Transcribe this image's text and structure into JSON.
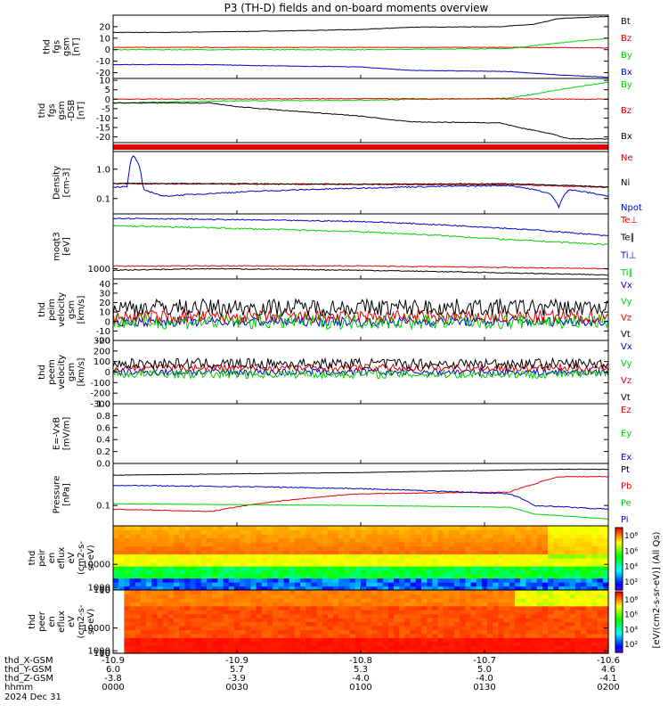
{
  "title": "P3 (TH-D) fields and on-board moments overview",
  "colors": {
    "black": "#000000",
    "red": "#e00000",
    "green": "#00d000",
    "blue": "#0000d0"
  },
  "chart_data": [
    {
      "type": "line",
      "ylabel": [
        "thd",
        "fgs",
        "gsm",
        "[nT]"
      ],
      "yticks": [
        {
          "v": 20,
          "t": "20"
        },
        {
          "v": 10,
          "t": "10"
        },
        {
          "v": 0,
          "t": "0"
        },
        {
          "v": -10,
          "t": "-10"
        },
        {
          "v": -20,
          "t": "-20"
        }
      ],
      "ylim": [
        -25,
        30
      ],
      "series": [
        {
          "name": "Bt",
          "color": "black",
          "noise": 0.2,
          "points": [
            [
              0,
              15
            ],
            [
              0.1,
              15
            ],
            [
              0.3,
              16
            ],
            [
              0.5,
              17.5
            ],
            [
              0.6,
              19.5
            ],
            [
              0.78,
              20
            ],
            [
              0.85,
              22
            ],
            [
              0.9,
              27
            ],
            [
              0.95,
              28
            ],
            [
              1,
              29
            ]
          ]
        },
        {
          "name": "Bz",
          "color": "red",
          "noise": 0.2,
          "points": [
            [
              0,
              2
            ],
            [
              0.5,
              2
            ],
            [
              0.8,
              2
            ],
            [
              1,
              1.5
            ]
          ]
        },
        {
          "name": "By",
          "color": "green",
          "noise": 0.3,
          "points": [
            [
              0,
              0
            ],
            [
              0.2,
              0
            ],
            [
              0.5,
              0
            ],
            [
              0.8,
              1
            ],
            [
              0.88,
              5
            ],
            [
              1,
              10
            ]
          ]
        },
        {
          "name": "Bx",
          "color": "blue",
          "noise": 0.2,
          "points": [
            [
              0,
              -13
            ],
            [
              0.2,
              -13
            ],
            [
              0.3,
              -14
            ],
            [
              0.5,
              -15
            ],
            [
              0.6,
              -18
            ],
            [
              0.8,
              -19
            ],
            [
              0.9,
              -22
            ],
            [
              1,
              -24
            ]
          ]
        }
      ]
    },
    {
      "type": "line",
      "ylabel": [
        "thd",
        "fgs",
        "gsm",
        "-DSB",
        "[nT]"
      ],
      "yticks": [
        {
          "v": 10,
          "t": "10"
        },
        {
          "v": 5,
          "t": "5"
        },
        {
          "v": 0,
          "t": "0"
        },
        {
          "v": -5,
          "t": "-5"
        },
        {
          "v": -10,
          "t": "-10"
        },
        {
          "v": -15,
          "t": "-15"
        },
        {
          "v": -20,
          "t": "-20"
        }
      ],
      "ylim": [
        -23,
        11
      ],
      "series": [
        {
          "name": "By",
          "color": "green",
          "noise": 0.2,
          "points": [
            [
              0,
              -2
            ],
            [
              0.2,
              -1
            ],
            [
              0.5,
              -0.5
            ],
            [
              0.8,
              0.5
            ],
            [
              0.9,
              5
            ],
            [
              1,
              9
            ]
          ]
        },
        {
          "name": "Bz",
          "color": "red",
          "noise": 0.2,
          "points": [
            [
              0,
              0
            ],
            [
              0.5,
              0.3
            ],
            [
              1,
              0
            ]
          ]
        },
        {
          "name": "Bx",
          "color": "black",
          "noise": 0.2,
          "points": [
            [
              0,
              -2
            ],
            [
              0.2,
              -2
            ],
            [
              0.25,
              -4
            ],
            [
              0.5,
              -9
            ],
            [
              0.6,
              -12
            ],
            [
              0.78,
              -12.5
            ],
            [
              0.82,
              -15
            ],
            [
              0.88,
              -18
            ],
            [
              0.92,
              -21
            ],
            [
              1,
              -21
            ]
          ]
        }
      ]
    },
    {
      "type": "bar",
      "kind": "status",
      "color": "red",
      "values": [
        1
      ]
    },
    {
      "type": "line",
      "log": true,
      "ylabel": [
        "Density",
        "[cm-3]"
      ],
      "yticks": [
        {
          "v": 1,
          "t": "1.0"
        },
        {
          "v": 0.1,
          "t": "0.1"
        }
      ],
      "ylim": [
        0.03,
        4
      ],
      "series": [
        {
          "name": "Ne",
          "color": "red",
          "noise": 0.04,
          "points": [
            [
              0,
              0.32
            ],
            [
              0.5,
              0.3
            ],
            [
              0.8,
              0.3
            ],
            [
              1,
              0.24
            ]
          ]
        },
        {
          "name": "Ni",
          "color": "black",
          "noise": 0.03,
          "points": [
            [
              0,
              0.33
            ],
            [
              0.5,
              0.31
            ],
            [
              0.8,
              0.32
            ],
            [
              1,
              0.25
            ]
          ]
        },
        {
          "name": "Npot",
          "color": "blue",
          "noise": 0.05,
          "points": [
            [
              0,
              0.25
            ],
            [
              0.03,
              0.25
            ],
            [
              0.04,
              3
            ],
            [
              0.06,
              0.2
            ],
            [
              0.1,
              0.12
            ],
            [
              0.3,
              0.18
            ],
            [
              0.6,
              0.25
            ],
            [
              0.8,
              0.28
            ],
            [
              0.88,
              0.15
            ],
            [
              0.9,
              0.05
            ],
            [
              0.92,
              0.2
            ],
            [
              1,
              0.12
            ]
          ]
        }
      ]
    },
    {
      "type": "line",
      "log": true,
      "ylabel": [
        "moqt3",
        "[eV]"
      ],
      "yticks": [
        {
          "v": 1000,
          "t": "1000"
        }
      ],
      "ylim": [
        500,
        40000
      ],
      "series": [
        {
          "name": "Te⊥",
          "color": "red",
          "noise": 0.03,
          "points": [
            [
              0,
              1200
            ],
            [
              0.5,
              1200
            ],
            [
              1,
              1000
            ]
          ]
        },
        {
          "name": "Te∥",
          "color": "black",
          "noise": 0.03,
          "points": [
            [
              0,
              900
            ],
            [
              0.2,
              1000
            ],
            [
              0.5,
              900
            ],
            [
              1,
              650
            ]
          ]
        },
        {
          "name": "Ti⊥",
          "color": "blue",
          "noise": 0.04,
          "points": [
            [
              0,
              30000
            ],
            [
              0.5,
              24000
            ],
            [
              0.8,
              15000
            ],
            [
              1,
              9000
            ]
          ]
        },
        {
          "name": "Ti∥",
          "color": "green",
          "noise": 0.05,
          "points": [
            [
              0,
              18000
            ],
            [
              0.5,
              12000
            ],
            [
              0.8,
              7000
            ],
            [
              1,
              5000
            ]
          ]
        }
      ]
    },
    {
      "type": "line",
      "ylabel": [
        "thd",
        "peim",
        "velocity",
        "gsm",
        "[km/s]"
      ],
      "yticks": [
        {
          "v": 40,
          "t": "40"
        },
        {
          "v": 30,
          "t": "30"
        },
        {
          "v": 20,
          "t": "20"
        },
        {
          "v": 10,
          "t": "10"
        },
        {
          "v": 0,
          "t": "0"
        },
        {
          "v": -10,
          "t": "-10"
        },
        {
          "v": -20,
          "t": "-20"
        }
      ],
      "ylim": [
        -20,
        45
      ],
      "series": [
        {
          "name": "Vx",
          "color": "blue",
          "noise": 5,
          "points": [
            [
              0,
              0
            ],
            [
              1,
              0
            ]
          ]
        },
        {
          "name": "Vy",
          "color": "green",
          "noise": 8,
          "points": [
            [
              0,
              0
            ],
            [
              1,
              0
            ]
          ]
        },
        {
          "name": "Vz",
          "color": "red",
          "noise": 7,
          "points": [
            [
              0,
              5
            ],
            [
              1,
              5
            ]
          ]
        },
        {
          "name": "Vt",
          "color": "black",
          "noise": 9,
          "points": [
            [
              0,
              15
            ],
            [
              1,
              15
            ]
          ]
        }
      ]
    },
    {
      "type": "line",
      "ylabel": [
        "thd",
        "peem",
        "velocity",
        "gsm",
        "[km/s]"
      ],
      "yticks": [
        {
          "v": 300,
          "t": "300"
        },
        {
          "v": 200,
          "t": "200"
        },
        {
          "v": 100,
          "t": "100"
        },
        {
          "v": 0,
          "t": "0"
        },
        {
          "v": -100,
          "t": "-100"
        },
        {
          "v": -200,
          "t": "-200"
        },
        {
          "v": -300,
          "t": "-300"
        }
      ],
      "ylim": [
        -300,
        300
      ],
      "series": [
        {
          "name": "Vx",
          "color": "blue",
          "noise": 35,
          "points": [
            [
              0,
              0
            ],
            [
              1,
              0
            ]
          ]
        },
        {
          "name": "Vy",
          "color": "green",
          "noise": 40,
          "points": [
            [
              0,
              -20
            ],
            [
              1,
              -20
            ]
          ]
        },
        {
          "name": "Vz",
          "color": "red",
          "noise": 35,
          "points": [
            [
              0,
              40
            ],
            [
              1,
              40
            ]
          ]
        },
        {
          "name": "Vt",
          "color": "black",
          "noise": 50,
          "points": [
            [
              0,
              80
            ],
            [
              1,
              80
            ]
          ]
        }
      ]
    },
    {
      "type": "line",
      "ylabel": [
        "E=-VxB",
        "[mV/m]"
      ],
      "yticks": [
        {
          "v": 1,
          "t": "1.0"
        },
        {
          "v": 0.8,
          "t": "0.8"
        },
        {
          "v": 0.6,
          "t": "0.6"
        },
        {
          "v": 0.4,
          "t": "0.4"
        },
        {
          "v": 0.2,
          "t": "0.2"
        },
        {
          "v": 0,
          "t": "0.0"
        }
      ],
      "ylim": [
        0,
        1
      ],
      "series": [
        {
          "name": "Ez",
          "color": "red",
          "noise": 0,
          "points": []
        },
        {
          "name": "Ey",
          "color": "green",
          "noise": 0,
          "points": []
        },
        {
          "name": "Ex",
          "color": "blue",
          "noise": 0,
          "points": []
        }
      ]
    },
    {
      "type": "line",
      "log": true,
      "ylabel": [
        "Pressure",
        "[nPa]"
      ],
      "yticks": [
        {
          "v": 0.1,
          "t": "0.1"
        }
      ],
      "ylim": [
        0.03,
        1.2
      ],
      "series": [
        {
          "name": "Pt",
          "color": "black",
          "noise": 0.01,
          "points": [
            [
              0,
              0.6
            ],
            [
              0.5,
              0.7
            ],
            [
              0.9,
              0.85
            ],
            [
              1,
              0.85
            ]
          ]
        },
        {
          "name": "Pb",
          "color": "red",
          "noise": 0.02,
          "points": [
            [
              0,
              0.08
            ],
            [
              0.2,
              0.07
            ],
            [
              0.5,
              0.2
            ],
            [
              0.8,
              0.22
            ],
            [
              0.85,
              0.35
            ],
            [
              0.9,
              0.55
            ],
            [
              1,
              0.55
            ]
          ]
        },
        {
          "name": "Pe",
          "color": "green",
          "noise": 0.01,
          "points": [
            [
              0,
              0.11
            ],
            [
              0.5,
              0.1
            ],
            [
              0.8,
              0.09
            ],
            [
              0.85,
              0.06
            ],
            [
              1,
              0.045
            ]
          ]
        },
        {
          "name": "Pi",
          "color": "blue",
          "noise": 0.03,
          "points": [
            [
              0,
              0.33
            ],
            [
              0.3,
              0.3
            ],
            [
              0.5,
              0.27
            ],
            [
              0.8,
              0.2
            ],
            [
              0.85,
              0.1
            ],
            [
              1,
              0.08
            ]
          ]
        }
      ]
    },
    {
      "type": "heatmap",
      "ylabel": [
        "thd",
        "peir",
        "en",
        "eflux",
        "eV",
        "(cm2-s-",
        "sr-eV)"
      ],
      "yticks": [
        {
          "v": 10000,
          "t": "10000"
        },
        {
          "v": 1000,
          "t": "1000"
        },
        {
          "v": 100,
          "t": "100"
        },
        {
          "v": 10,
          "t": "10"
        }
      ],
      "ylim": [
        7,
        25000
      ],
      "kind": "ions"
    },
    {
      "type": "heatmap",
      "ylabel": [
        "thd",
        "peer",
        "en",
        "eflux",
        "eV",
        "(cm2-s-",
        "sr-eV)"
      ],
      "yticks": [
        {
          "v": 10000,
          "t": "10000"
        },
        {
          "v": 1000,
          "t": "1000"
        },
        {
          "v": 100,
          "t": "100"
        },
        {
          "v": 10,
          "t": "10"
        }
      ],
      "ylim": [
        7,
        25000
      ],
      "kind": "electrons"
    }
  ],
  "colorbar": {
    "label": "[eV/(cm2-s-sr-eV)] (All Qs)",
    "ticks_top": [
      "10⁸",
      "10⁶",
      "10⁴",
      "10²"
    ],
    "ticks_bottom": [
      "10⁸",
      "10⁶",
      "10⁴",
      "10²"
    ]
  },
  "xaxis": {
    "rows": [
      {
        "label": "thd_X-GSM",
        "values": [
          "-10.9",
          "-10.9",
          "-10.8",
          "-10.7",
          "-10.6"
        ]
      },
      {
        "label": "thd_Y-GSM",
        "values": [
          "6.0",
          "5.7",
          "5.3",
          "5.0",
          "4.6"
        ]
      },
      {
        "label": "thd_Z-GSM",
        "values": [
          "-3.8",
          "-3.9",
          "-4.0",
          "-4.0",
          "-4.1"
        ]
      },
      {
        "label": "hhmm",
        "values": [
          "0000",
          "0030",
          "0100",
          "0130",
          "0200"
        ]
      }
    ],
    "date": "2024 Dec 31"
  }
}
